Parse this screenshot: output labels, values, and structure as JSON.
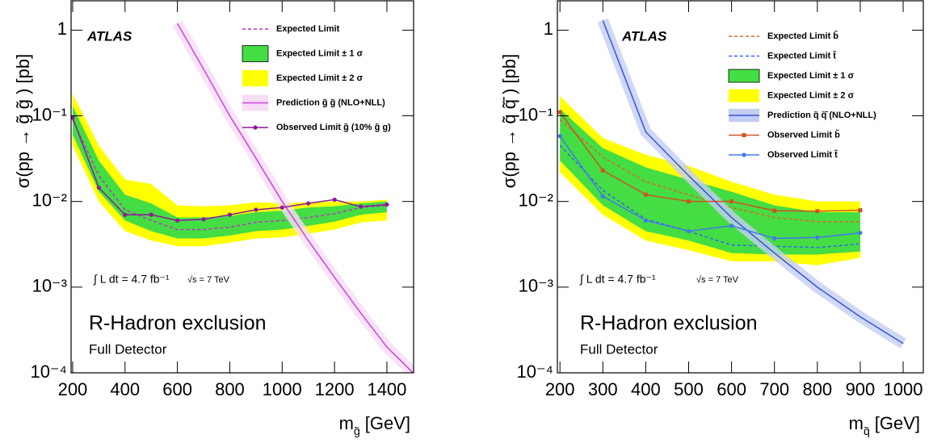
{
  "chart_data": [
    {
      "type": "line",
      "ylabel": "σ(pp → g̃ g̃ ) [pb]",
      "xlabel": {
        "symbol": "m",
        "subscript": "g̃",
        "unit": "[GeV]"
      },
      "log_y": true,
      "xlim": [
        194,
        1502
      ],
      "ylim": [
        0.0001,
        2.2
      ],
      "xticks": [
        200,
        400,
        600,
        800,
        1000,
        1200,
        1400
      ],
      "yticks": [
        {
          "value": 0.0001,
          "label": "10⁻⁴"
        },
        {
          "value": 0.001,
          "label": "10⁻³"
        },
        {
          "value": 0.01,
          "label": "10⁻²"
        },
        {
          "value": 0.1,
          "label": "10⁻¹"
        },
        1
      ],
      "x": [
        200,
        300,
        400,
        500,
        600,
        700,
        800,
        900,
        1000,
        1100,
        1200,
        1300,
        1400
      ],
      "series": [
        {
          "name": "Expected Limit",
          "color": "#c030c0",
          "style": "dashed",
          "values": [
            0.09,
            0.02,
            0.008,
            0.006,
            0.0047,
            0.0047,
            0.005,
            0.0057,
            0.006,
            0.0065,
            0.0072,
            0.0085,
            0.009
          ]
        },
        {
          "name": "Expected Limit ± 1 σ",
          "type": "band",
          "color": "#44dd44",
          "low": [
            0.06,
            0.013,
            0.006,
            0.0045,
            0.0037,
            0.0037,
            0.004,
            0.0045,
            0.0047,
            0.0052,
            0.0058,
            0.007,
            0.0075
          ],
          "high": [
            0.13,
            0.03,
            0.012,
            0.0095,
            0.0065,
            0.0065,
            0.0068,
            0.0075,
            0.0078,
            0.0085,
            0.0088,
            0.0095,
            0.01
          ]
        },
        {
          "name": "Expected Limit ± 2 σ",
          "type": "band",
          "color": "#ffff00",
          "low": [
            0.045,
            0.01,
            0.0045,
            0.0035,
            0.003,
            0.003,
            0.0033,
            0.0037,
            0.0038,
            0.0042,
            0.0047,
            0.0057,
            0.006
          ],
          "high": [
            0.18,
            0.045,
            0.018,
            0.016,
            0.009,
            0.0088,
            0.009,
            0.0098,
            0.0095,
            0.0098,
            0.01,
            0.01,
            0.0105
          ]
        },
        {
          "name": "Prediction g̃ g̃ (NLO+NLL)",
          "color": "#cc44dd",
          "band_color": "#f6dcf6",
          "x": [
            600,
            700,
            800,
            900,
            1000,
            1100,
            1200,
            1300,
            1400,
            1500
          ],
          "values": [
            1.2,
            0.35,
            0.1,
            0.032,
            0.01,
            0.0035,
            0.0013,
            0.0005,
            0.0002,
            0.0001
          ]
        },
        {
          "name": "Observed Limit g̃ (10% g̃ g)",
          "color": "#8e1a96",
          "marker": "circle",
          "values": [
            0.095,
            0.0145,
            0.007,
            0.007,
            0.006,
            0.0062,
            0.007,
            0.008,
            0.0085,
            0.0095,
            0.0105,
            0.0087,
            0.0092
          ]
        }
      ],
      "annotations": {
        "experiment": "ATLAS",
        "luminosity": "∫ L dt = 4.7 fb⁻¹",
        "energy": "√s = 7 TeV",
        "title": "R-Hadron exclusion",
        "subtitle": "Full Detector"
      }
    },
    {
      "type": "line",
      "ylabel": "σ(pp → q̃ q̃̄ ) [pb]",
      "xlabel": {
        "symbol": "m",
        "subscript": "q̃",
        "unit": "[GeV]"
      },
      "log_y": true,
      "xlim": [
        194,
        1047
      ],
      "ylim": [
        0.0001,
        2.2
      ],
      "xticks": [
        200,
        300,
        400,
        500,
        600,
        700,
        800,
        900,
        1000
      ],
      "yticks": [
        {
          "value": 0.0001,
          "label": "10⁻⁴"
        },
        {
          "value": 0.001,
          "label": "10⁻³"
        },
        {
          "value": 0.01,
          "label": "10⁻²"
        },
        {
          "value": 0.1,
          "label": "10⁻¹"
        },
        1
      ],
      "x": [
        200,
        300,
        400,
        500,
        600,
        700,
        800,
        900
      ],
      "series": [
        {
          "name": "Expected Limit b̃",
          "color": "#dd6622",
          "style": "dashed",
          "values": [
            0.09,
            0.033,
            0.017,
            0.012,
            0.0085,
            0.0065,
            0.0058,
            0.0058
          ]
        },
        {
          "name": "Expected Limit t̃",
          "color": "#3366ee",
          "style": "dashed",
          "values": [
            0.045,
            0.0135,
            0.0062,
            0.0045,
            0.0031,
            0.003,
            0.0029,
            0.0032
          ]
        },
        {
          "name": "Expected Limit ± 1 σ",
          "type": "band",
          "color": "#44dd44",
          "low": [
            0.03,
            0.009,
            0.0045,
            0.0035,
            0.0025,
            0.0024,
            0.0024,
            0.0026
          ],
          "high": [
            0.12,
            0.042,
            0.025,
            0.018,
            0.013,
            0.009,
            0.0075,
            0.0075
          ]
        },
        {
          "name": "Expected Limit ± 2 σ",
          "type": "band",
          "color": "#ffff00",
          "low": [
            0.022,
            0.007,
            0.0035,
            0.0027,
            0.002,
            0.002,
            0.0018,
            0.0022
          ],
          "high": [
            0.17,
            0.055,
            0.035,
            0.026,
            0.017,
            0.012,
            0.01,
            0.01
          ]
        },
        {
          "name": "Prediction q̃ q̃̄ (NLO+NLL)",
          "color": "#3355dd",
          "band_color": "#c4cef2",
          "x": [
            300,
            400,
            500,
            600,
            700,
            800,
            900,
            1000
          ],
          "values": [
            1.3,
            0.065,
            0.02,
            0.0065,
            0.0025,
            0.001,
            0.00045,
            0.00022
          ]
        },
        {
          "name": "Observed Limit b̃",
          "color": "#cc5522",
          "marker": "square",
          "values": [
            0.11,
            0.023,
            0.012,
            0.01,
            0.01,
            0.0078,
            0.0077,
            0.0079
          ]
        },
        {
          "name": "Observed Limit t̃",
          "color": "#4477ee",
          "marker": "circle",
          "values": [
            0.058,
            0.0115,
            0.006,
            0.0045,
            0.0052,
            0.0037,
            0.0038,
            0.0043
          ]
        }
      ],
      "annotations": {
        "experiment": "ATLAS",
        "luminosity": "∫ L dt = 4.7 fb⁻¹",
        "energy": "√s = 7 TeV",
        "title": "R-Hadron exclusion",
        "subtitle": "Full Detector"
      }
    }
  ]
}
